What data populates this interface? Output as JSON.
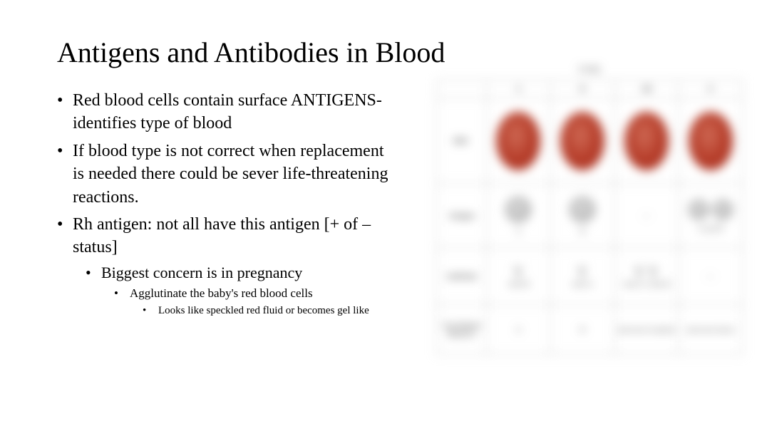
{
  "title": "Antigens and Antibodies in Blood",
  "bullets": {
    "b1": "Red blood cells contain surface ANTIGENS- identifies type of blood",
    "b2": "If blood type is not correct when replacement is needed there could be sever life-threatening reactions.",
    "b3": "Rh antigen: not all have this antigen [+ of – status]",
    "b3a": "Biggest concern is in pregnancy",
    "b3a1": "Agglutinate the baby's red blood cells",
    "b3a1a": "Looks like speckled red fluid or becomes gel like"
  },
  "chart": {
    "caption": "TYPE",
    "cols": [
      "A",
      "B",
      "AB",
      "O"
    ],
    "row_labels": {
      "rbc": "RBC",
      "antigen": "Antigen",
      "antibody": "Antibody",
      "donate": "Can donate blood to"
    },
    "antigen_text": {
      "a": "A",
      "b": "B",
      "ab": "—",
      "o": "A and B"
    },
    "antibody_text": {
      "a": "Anti-B",
      "b": "Anti-A",
      "ab": "Anti-A, Anti-B",
      "o": "—"
    },
    "donate_text": {
      "a": "A",
      "b": "B",
      "ab": "universal recipient",
      "o": "universal donor"
    },
    "colors": {
      "rbc": "#b43a27",
      "border": "#bfbfbf",
      "text": "#555555"
    }
  }
}
